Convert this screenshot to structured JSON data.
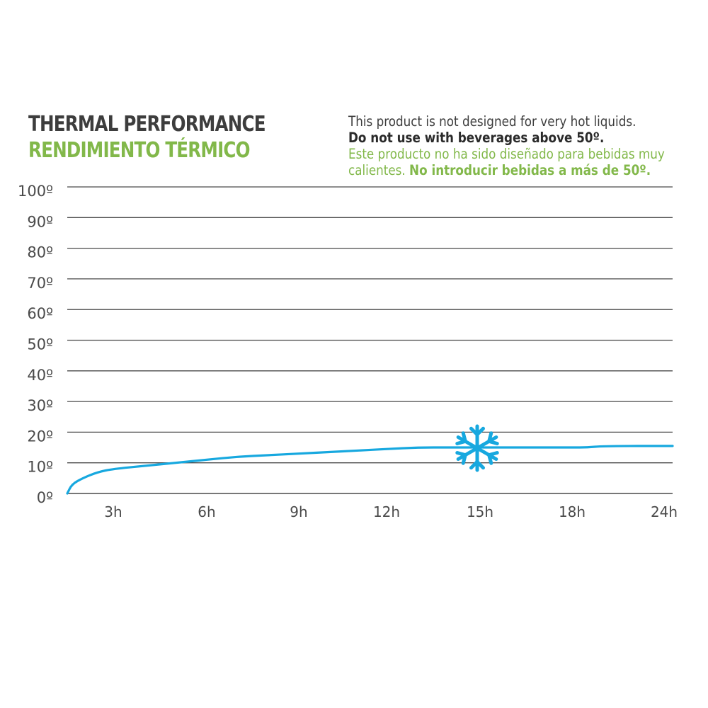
{
  "header": {
    "title_en": "THERMAL PERFORMANCE",
    "title_es": "RENDIMIENTO TÉRMICO"
  },
  "note": {
    "line1": "This product is not designed for very hot liquids.",
    "line2": "Do not use with beverages above 50º.",
    "line3": "Este producto no ha sido diseñado para bebidas muy",
    "line4_normal": "calientes. ",
    "line4_bold": "No introducir bebidas a más de 50º."
  },
  "icon": {
    "name": "snowflake-icon",
    "color": "#17a8df"
  },
  "colors": {
    "title_dark": "#3d3d3d",
    "accent_green": "#82b84a",
    "line_blue": "#17a8df",
    "grid": "#4a4a4a"
  },
  "chart_data": {
    "type": "line",
    "title": "THERMAL PERFORMANCE",
    "xlabel": "",
    "ylabel": "",
    "categories": [
      "3h",
      "6h",
      "9h",
      "12h",
      "15h",
      "18h",
      "24h"
    ],
    "ytick_labels": [
      "0º",
      "10º",
      "20º",
      "30º",
      "40º",
      "50º",
      "60º",
      "70º",
      "80º",
      "90º",
      "100º"
    ],
    "ylim": [
      0,
      100
    ],
    "grid": true,
    "series": [
      {
        "color": "#17a8df",
        "points": [
          {
            "x": 0.0,
            "y": 0
          },
          {
            "x": 0.3,
            "y": 3
          },
          {
            "x": 1.0,
            "y": 5
          },
          {
            "x": 2.0,
            "y": 7
          },
          {
            "x": 3.0,
            "y": 8
          },
          {
            "x": 4.0,
            "y": 9
          },
          {
            "x": 5.0,
            "y": 10
          },
          {
            "x": 6.0,
            "y": 11
          },
          {
            "x": 7.0,
            "y": 12
          },
          {
            "x": 8.0,
            "y": 12.5
          },
          {
            "x": 9.0,
            "y": 13
          },
          {
            "x": 10.0,
            "y": 13.5
          },
          {
            "x": 11.0,
            "y": 14
          },
          {
            "x": 12.0,
            "y": 14.5
          },
          {
            "x": 13.0,
            "y": 15
          },
          {
            "x": 14.0,
            "y": 15
          },
          {
            "x": 15.0,
            "y": 15
          },
          {
            "x": 16.0,
            "y": 15
          },
          {
            "x": 17.0,
            "y": 15
          },
          {
            "x": 18.0,
            "y": 15
          },
          {
            "x": 19.0,
            "y": 15
          },
          {
            "x": 20.0,
            "y": 15.5
          }
        ]
      }
    ]
  }
}
